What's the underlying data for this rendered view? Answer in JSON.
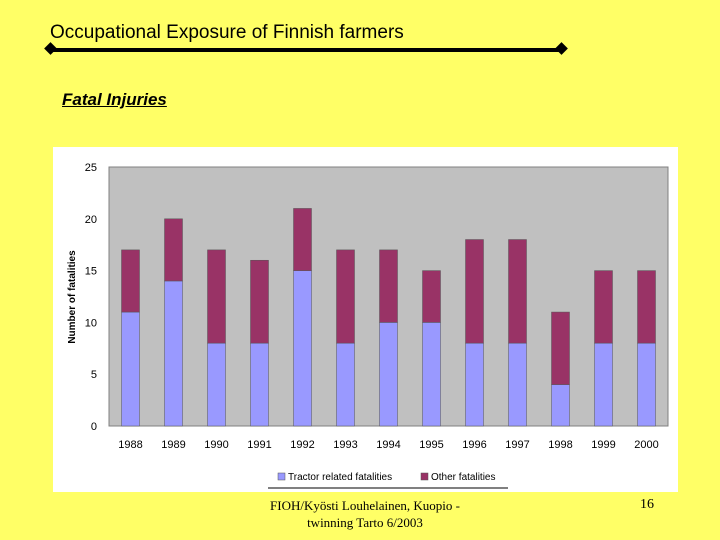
{
  "slide": {
    "title": "Occupational Exposure of Finnish farmers",
    "subtitle": "Fatal Injuries",
    "footer_line1": "FIOH/Kyösti Louhelainen, Kuopio -",
    "footer_line2": "twinning Tarto 6/2003",
    "page_number": "16"
  },
  "colors": {
    "background": "#ffff66",
    "plot_area": "#c0c0c0",
    "tractor": "#9999ff",
    "other": "#993366"
  },
  "chart_data": {
    "type": "bar",
    "stacked": true,
    "title": "",
    "xlabel": "",
    "ylabel": "Number of fatalities",
    "ylim": [
      0,
      25
    ],
    "yticks": [
      0,
      5,
      10,
      15,
      20,
      25
    ],
    "grid": false,
    "legend": "bottom",
    "categories": [
      "1988",
      "1989",
      "1990",
      "1991",
      "1992",
      "1993",
      "1994",
      "1995",
      "1996",
      "1997",
      "1998",
      "1999",
      "2000"
    ],
    "series": [
      {
        "name": "Tractor related fatalities",
        "values": [
          11,
          14,
          8,
          8,
          15,
          8,
          10,
          10,
          8,
          8,
          4,
          8,
          8
        ]
      },
      {
        "name": "Other fatalities",
        "values": [
          6,
          6,
          9,
          8,
          6,
          9,
          7,
          5,
          10,
          10,
          7,
          7,
          7
        ]
      }
    ]
  }
}
